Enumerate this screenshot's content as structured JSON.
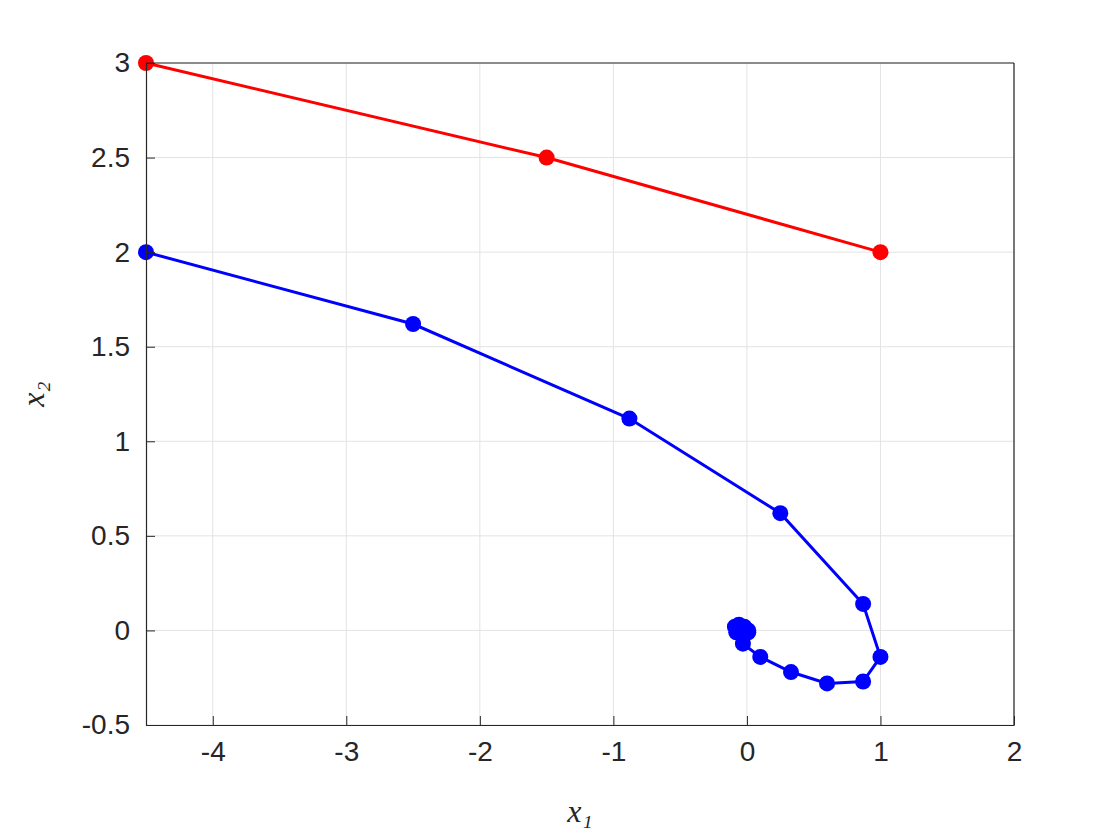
{
  "chart_data": {
    "type": "line",
    "x_label": "x₁",
    "y_label": "x₂",
    "xlim": [
      -4.5,
      2
    ],
    "ylim": [
      -0.5,
      3
    ],
    "xticks": [
      -4,
      -3,
      -2,
      -1,
      0,
      1,
      2
    ],
    "yticks": [
      -0.5,
      0,
      0.5,
      1,
      1.5,
      2,
      2.5,
      3
    ],
    "grid": true,
    "series": [
      {
        "color": "#ff0000",
        "marker": "circle",
        "line_style": "solid",
        "x": [
          -4.5,
          -1.5,
          1
        ],
        "values": [
          3,
          2.5,
          2
        ]
      },
      {
        "color": "#0000ff",
        "marker": "circle",
        "line_style": "solid",
        "x": [
          -4.5,
          -2.5,
          -0.88,
          0.25,
          0.87,
          1.0,
          0.87,
          0.6,
          0.33,
          0.1,
          -0.03,
          -0.08,
          -0.09,
          -0.06,
          -0.02,
          0.01,
          0.01,
          0.0,
          -0.01
        ],
        "values": [
          2,
          1.62,
          1.12,
          0.62,
          0.14,
          -0.14,
          -0.27,
          -0.28,
          -0.22,
          -0.14,
          -0.07,
          -0.01,
          0.02,
          0.03,
          0.02,
          0.0,
          -0.01,
          -0.01,
          0.0
        ]
      }
    ]
  }
}
